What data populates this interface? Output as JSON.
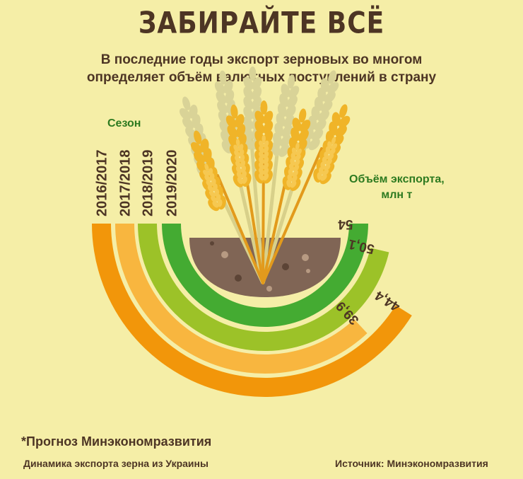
{
  "header": {
    "title": "ЗАБИРАЙТЕ ВСЁ",
    "subtitle_line1": "В последние годы экспорт зерновых во многом",
    "subtitle_line2": "определяет объём валютных поступлений в страну"
  },
  "legend": {
    "season_label": "Сезон",
    "export_label_line1": "Объём экспорта,",
    "export_label_line2": "млн т"
  },
  "footer": {
    "footnote": "*Прогноз Минэкономразвития",
    "caption": "Динамика экспорта зерна из Украины",
    "source": "Источник: Минэкономразвития"
  },
  "colors": {
    "background": "#f5eea7",
    "text_dark": "#4d3524",
    "text_green": "#2d7a20",
    "soil": "#806555",
    "wheat": "#f0b428"
  },
  "chart_data": {
    "type": "bar",
    "categories": [
      "2016/2017",
      "2017/2018",
      "2018/2019",
      "2019/2020"
    ],
    "values": [
      44.4,
      39.9,
      50.1,
      54
    ],
    "value_labels": [
      "44,4",
      "39,9",
      "50,1",
      "54"
    ],
    "colors": [
      "#f2960a",
      "#f8b63f",
      "#9cc228",
      "#44ab32"
    ],
    "title": "",
    "xlabel": "Сезон",
    "ylabel": "Объём экспорта, млн т"
  }
}
